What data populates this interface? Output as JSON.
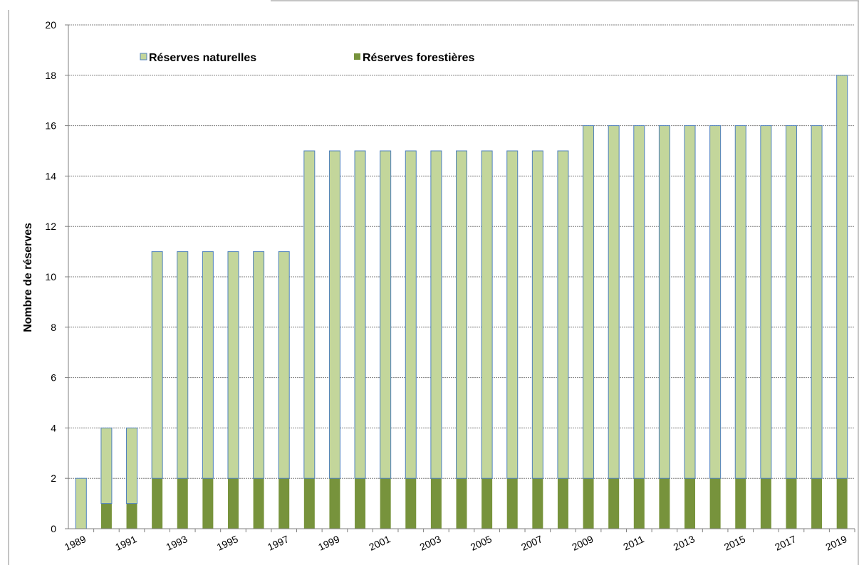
{
  "chart_data": {
    "type": "bar",
    "stacked": true,
    "ylabel": "Nombre de réserves",
    "xlabel": "",
    "ylim": [
      0,
      20
    ],
    "yticks": [
      0,
      2,
      4,
      6,
      8,
      10,
      12,
      14,
      16,
      18,
      20
    ],
    "grid": true,
    "legend_position": "top-left",
    "categories": [
      "1989",
      "1990",
      "1991",
      "1992",
      "1993",
      "1994",
      "1995",
      "1996",
      "1997",
      "1998",
      "1999",
      "2000",
      "2001",
      "2002",
      "2003",
      "2004",
      "2005",
      "2006",
      "2007",
      "2008",
      "2009",
      "2010",
      "2011",
      "2012",
      "2013",
      "2014",
      "2015",
      "2016",
      "2017",
      "2018",
      "2019"
    ],
    "tick_labels": [
      "1989",
      "1991",
      "1993",
      "1995",
      "1997",
      "1999",
      "2001",
      "2003",
      "2005",
      "2007",
      "2009",
      "2011",
      "2013",
      "2015",
      "2017",
      "2019"
    ],
    "series": [
      {
        "name": "Réserves forestières",
        "color": "#77933c",
        "values": [
          0,
          1,
          1,
          2,
          2,
          2,
          2,
          2,
          2,
          2,
          2,
          2,
          2,
          2,
          2,
          2,
          2,
          2,
          2,
          2,
          2,
          2,
          2,
          2,
          2,
          2,
          2,
          2,
          2,
          2,
          2
        ]
      },
      {
        "name": "Réserves naturelles",
        "color": "#c3d69b",
        "edge_color": "#4f81bd",
        "values": [
          2,
          3,
          3,
          9,
          9,
          9,
          9,
          9,
          9,
          13,
          13,
          13,
          13,
          13,
          13,
          13,
          13,
          13,
          13,
          13,
          14,
          14,
          14,
          14,
          14,
          14,
          14,
          14,
          14,
          14,
          16
        ]
      }
    ],
    "legend": [
      {
        "label": "Réserves naturelles",
        "color": "#c3d69b"
      },
      {
        "label": "Réserves forestières",
        "color": "#77933c"
      }
    ]
  }
}
